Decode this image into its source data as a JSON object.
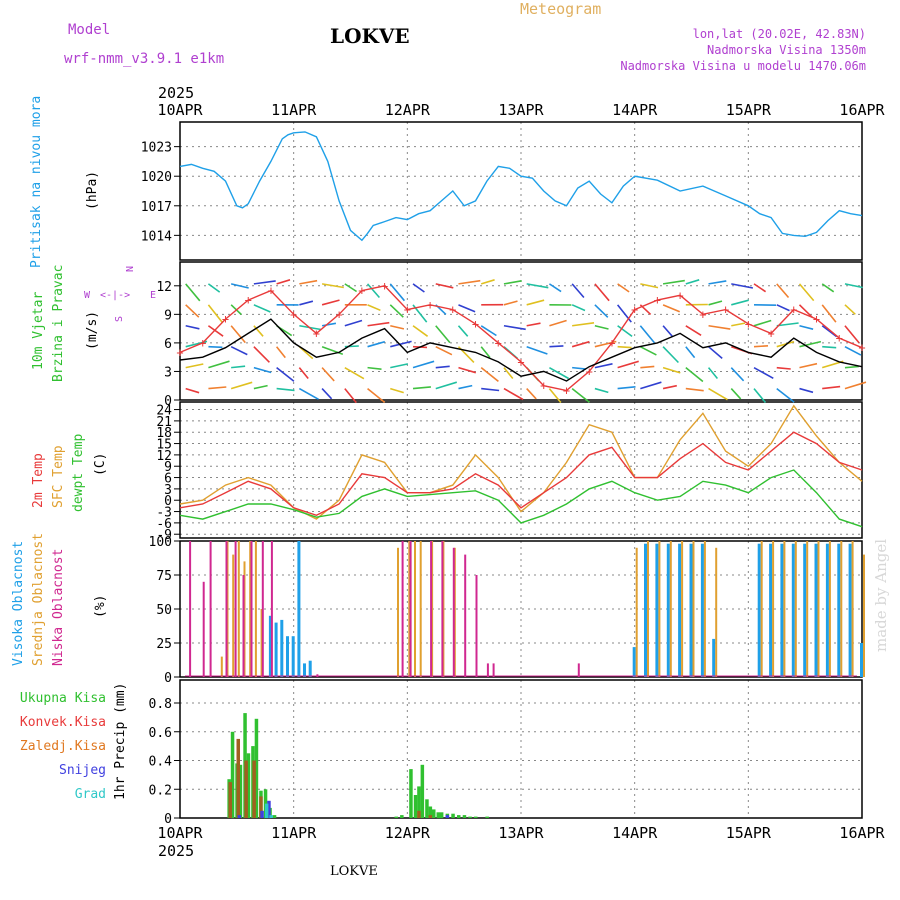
{
  "header": {
    "model_label": "Model",
    "model_name": "wrf-nmm_v3.9.1 e1km",
    "station": "LOKVE",
    "title": "Meteogram",
    "lonlat": "lon,lat (20.02E, 42.83N)",
    "altitude": "Nadmorska Visina 1350m",
    "model_altitude": "Nadmorska Visina u modelu 1470.06m",
    "year_top": "2025",
    "year_bottom": "2025",
    "footer_station": "LOKVE",
    "credit": "made by Angel"
  },
  "colors": {
    "pressure": "#1fa0e8",
    "t2m": "#e83a3a",
    "sfc": "#e0a030",
    "dewpt": "#30c030",
    "high": "#1fa0e8",
    "mid": "#e0a030",
    "low": "#d02890",
    "wind_speed": "#000000",
    "gust": "#e83a3a",
    "total_precip": "#30c030",
    "conv_precip": "#e83a3a",
    "frozen_precip": "#e07820",
    "snow": "#4040e0",
    "graupel": "#30c8c8",
    "compass": "#b040d0"
  },
  "chart_data": [
    {
      "type": "line",
      "panel": "pressure",
      "ylabel": [
        "Pritisak na nivou mora",
        "(hPa)"
      ],
      "x_ticks": [
        "10APR",
        "11APR",
        "12APR",
        "13APR",
        "14APR",
        "15APR",
        "16APR"
      ],
      "ylim": [
        1011.5,
        1025.5
      ],
      "y_ticks": [
        1014,
        1017,
        1020,
        1023
      ],
      "grid": true,
      "x": [
        0,
        0.1,
        0.2,
        0.3,
        0.4,
        0.5,
        0.55,
        0.6,
        0.7,
        0.8,
        0.9,
        0.95,
        1.0,
        1.1,
        1.2,
        1.3,
        1.4,
        1.5,
        1.6,
        1.65,
        1.7,
        1.8,
        1.9,
        2.0,
        2.1,
        2.2,
        2.3,
        2.4,
        2.5,
        2.6,
        2.7,
        2.8,
        2.9,
        3.0,
        3.1,
        3.2,
        3.3,
        3.4,
        3.5,
        3.6,
        3.7,
        3.8,
        3.9,
        4.0,
        4.2,
        4.4,
        4.6,
        4.8,
        5.0,
        5.1,
        5.2,
        5.3,
        5.4,
        5.5,
        5.6,
        5.7,
        5.8,
        5.9,
        6.0
      ],
      "series": [
        {
          "values": [
            1021.0,
            1021.2,
            1020.8,
            1020.5,
            1019.5,
            1017.0,
            1016.8,
            1017.2,
            1019.5,
            1021.5,
            1023.8,
            1024.2,
            1024.4,
            1024.5,
            1024.0,
            1021.5,
            1017.5,
            1014.5,
            1013.5,
            1014.2,
            1015.0,
            1015.4,
            1015.8,
            1015.6,
            1016.2,
            1016.5,
            1017.5,
            1018.5,
            1017.0,
            1017.5,
            1019.5,
            1021.0,
            1020.8,
            1020.0,
            1019.8,
            1018.5,
            1017.5,
            1017.0,
            1018.8,
            1019.5,
            1018.2,
            1017.3,
            1019.0,
            1020.0,
            1019.6,
            1018.5,
            1019.0,
            1018.0,
            1017.0,
            1016.2,
            1015.8,
            1014.2,
            1014.0,
            1013.9,
            1014.3,
            1015.5,
            1016.5,
            1016.2,
            1016.0
          ]
        }
      ]
    },
    {
      "type": "line",
      "panel": "wind",
      "ylabel": [
        "10m Vjetar",
        "Brzina i Pravac",
        "(m/s)"
      ],
      "compass": [
        "N",
        "W",
        "E",
        "S"
      ],
      "compass_arrows": "<-|->",
      "ylim": [
        0,
        14.5
      ],
      "y_ticks": [
        0,
        3,
        6,
        9,
        12
      ],
      "grid": true,
      "x": [
        0,
        0.2,
        0.4,
        0.6,
        0.8,
        1.0,
        1.2,
        1.4,
        1.6,
        1.8,
        2.0,
        2.2,
        2.4,
        2.6,
        2.8,
        3.0,
        3.2,
        3.4,
        3.6,
        3.8,
        4.0,
        4.2,
        4.4,
        4.6,
        4.8,
        5.0,
        5.2,
        5.4,
        5.6,
        5.8,
        6.0
      ],
      "series": [
        {
          "name": "speed",
          "values": [
            4.2,
            4.5,
            5.5,
            7.0,
            8.5,
            6.0,
            4.5,
            5.0,
            6.5,
            7.5,
            5.0,
            6.0,
            5.5,
            5.0,
            4.0,
            2.5,
            3.0,
            2.0,
            3.5,
            4.5,
            5.5,
            6.0,
            7.0,
            5.5,
            6.0,
            5.0,
            4.5,
            6.5,
            5.0,
            4.0,
            3.5
          ]
        },
        {
          "name": "gust",
          "values": [
            5.0,
            6.0,
            8.5,
            10.5,
            11.5,
            9.0,
            7.0,
            9.0,
            11.5,
            12.0,
            9.5,
            10.0,
            9.5,
            8.0,
            6.0,
            4.0,
            1.5,
            1.0,
            3.0,
            6.0,
            9.5,
            10.5,
            11.0,
            9.0,
            9.5,
            8.0,
            7.0,
            9.5,
            8.5,
            6.5,
            5.5
          ]
        }
      ]
    },
    {
      "type": "line",
      "panel": "temperature",
      "ylabel": [
        "2m Temp",
        "SFC Temp",
        "dewpt Temp",
        "(C)"
      ],
      "ylim": [
        -10,
        26
      ],
      "y_ticks": [
        -9,
        -6,
        -3,
        0,
        3,
        6,
        9,
        12,
        15,
        18,
        21,
        24
      ],
      "grid": true,
      "x": [
        0,
        0.2,
        0.4,
        0.6,
        0.8,
        1.0,
        1.2,
        1.4,
        1.6,
        1.8,
        2.0,
        2.2,
        2.4,
        2.6,
        2.8,
        3.0,
        3.2,
        3.4,
        3.6,
        3.8,
        4.0,
        4.2,
        4.4,
        4.6,
        4.8,
        5.0,
        5.2,
        5.4,
        5.6,
        5.8,
        6.0
      ],
      "series": [
        {
          "name": "2m",
          "values": [
            -2.0,
            -1.0,
            2.0,
            5.0,
            3.0,
            -2.0,
            -4.0,
            -1.0,
            7.0,
            6.0,
            2.0,
            2.0,
            3.0,
            7.0,
            4.0,
            -2.0,
            2.0,
            6.0,
            12.0,
            14.0,
            6.0,
            6.0,
            11.0,
            15.0,
            10.0,
            8.0,
            13.0,
            18.0,
            15.0,
            10.0,
            8.0
          ]
        },
        {
          "name": "sfc",
          "values": [
            -1.0,
            0.0,
            4.0,
            6.0,
            4.0,
            -2.0,
            -5.0,
            0.0,
            12.0,
            10.0,
            2.0,
            2.0,
            4.0,
            12.0,
            6.0,
            -3.0,
            2.0,
            10.0,
            20.0,
            18.0,
            6.0,
            6.0,
            16.0,
            23.0,
            13.0,
            9.0,
            15.0,
            25.0,
            17.0,
            10.0,
            5.0
          ]
        },
        {
          "name": "dewpt",
          "values": [
            -4.0,
            -5.0,
            -3.0,
            -1.0,
            -1.0,
            -2.5,
            -4.5,
            -3.5,
            1.0,
            3.0,
            1.0,
            1.5,
            2.0,
            2.5,
            0.0,
            -6.0,
            -4.0,
            -1.0,
            3.0,
            5.0,
            2.0,
            0.0,
            1.0,
            5.0,
            4.0,
            2.0,
            6.0,
            8.0,
            2.0,
            -5.0,
            -7.0
          ]
        }
      ]
    },
    {
      "type": "bar",
      "panel": "clouds",
      "ylabel": [
        "Visoka Oblacnost",
        "Srednja Oblacnost",
        "Niska Oblacnost",
        "(%)"
      ],
      "ylim": [
        0,
        100
      ],
      "y_ticks": [
        0,
        25,
        50,
        75,
        100
      ],
      "grid": true,
      "series": [
        {
          "name": "high",
          "x": [
            0.8,
            0.85,
            0.9,
            0.95,
            1.0,
            1.05,
            1.1,
            1.15,
            4.0,
            4.1,
            4.2,
            4.3,
            4.4,
            4.5,
            4.6,
            4.7,
            5.1,
            5.2,
            5.3,
            5.4,
            5.5,
            5.6,
            5.7,
            5.8,
            5.9,
            6.0
          ],
          "values": [
            45,
            40,
            42,
            30,
            30,
            100,
            10,
            12,
            22,
            98,
            98,
            98,
            98,
            98,
            98,
            28,
            98,
            98,
            98,
            98,
            98,
            98,
            98,
            98,
            98,
            25
          ]
        },
        {
          "name": "mid",
          "x": [
            0.35,
            0.4,
            0.45,
            0.5,
            0.55,
            0.6,
            0.65,
            0.7,
            1.9,
            2.0,
            2.05,
            2.1,
            2.2,
            2.3,
            2.4,
            4.0,
            4.1,
            4.2,
            4.3,
            4.4,
            4.5,
            4.6,
            4.7,
            5.1,
            5.2,
            5.3,
            5.4,
            5.5,
            5.6,
            5.7,
            5.8,
            5.9,
            6.0
          ],
          "values": [
            15,
            100,
            90,
            100,
            85,
            100,
            100,
            50,
            95,
            100,
            100,
            100,
            100,
            100,
            95,
            95,
            100,
            100,
            100,
            100,
            100,
            100,
            95,
            100,
            100,
            100,
            100,
            100,
            100,
            100,
            100,
            100,
            90
          ]
        },
        {
          "name": "low",
          "x": [
            0.08,
            0.2,
            0.26,
            0.4,
            0.48,
            0.55,
            0.62,
            0.72,
            0.8,
            1.2,
            1.95,
            2.02,
            2.2,
            2.3,
            2.4,
            2.5,
            2.6,
            2.7,
            2.75,
            3.5
          ],
          "values": [
            100,
            70,
            100,
            100,
            100,
            75,
            100,
            100,
            100,
            2,
            100,
            100,
            100,
            100,
            95,
            90,
            75,
            10,
            10,
            10
          ]
        }
      ]
    },
    {
      "type": "bar",
      "panel": "precip",
      "ylabel": [
        "1hr Precip (mm)"
      ],
      "legend": [
        "Ukupna Kisa",
        "Konvek.Kisa",
        "Zaledj.Kisa",
        "Snijeg",
        "Grad"
      ],
      "ylim": [
        0,
        0.96
      ],
      "y_ticks": [
        0,
        0.2,
        0.4,
        0.6,
        0.8
      ],
      "y_tick_labels": [
        "0",
        "0.2",
        "0.4",
        "0.6",
        "0.8"
      ],
      "grid": true,
      "series": [
        {
          "name": "Ukupna Kisa",
          "x": [
            0.43,
            0.46,
            0.5,
            0.53,
            0.57,
            0.6,
            0.64,
            0.67,
            0.71,
            0.75,
            0.79,
            0.83,
            1.9,
            1.95,
            2.03,
            2.07,
            2.1,
            2.13,
            2.17,
            2.2,
            2.23,
            2.27,
            2.3,
            2.35,
            2.4,
            2.45,
            2.5,
            2.55,
            2.6,
            2.7
          ],
          "values": [
            0.27,
            0.6,
            0.38,
            0.37,
            0.73,
            0.45,
            0.5,
            0.69,
            0.19,
            0.2,
            0.07,
            0.02,
            0.01,
            0.02,
            0.34,
            0.16,
            0.22,
            0.37,
            0.13,
            0.08,
            0.06,
            0.04,
            0.04,
            0.03,
            0.03,
            0.02,
            0.02,
            0.01,
            0.01,
            0.01
          ]
        },
        {
          "name": "Konvek.Kisa",
          "x": [
            0.44,
            0.51,
            0.58,
            0.65,
            0.71,
            2.1,
            2.2
          ],
          "values": [
            0.25,
            0.55,
            0.4,
            0.4,
            0.15,
            0.05,
            0.02
          ]
        },
        {
          "name": "Snijeg",
          "x": [
            0.52,
            0.72,
            0.78,
            2.35
          ],
          "values": [
            0.02,
            0.05,
            0.12,
            0.02
          ]
        },
        {
          "name": "Grad",
          "x": [
            0.76,
            0.8
          ],
          "values": [
            0.1,
            0.02
          ]
        }
      ]
    }
  ]
}
